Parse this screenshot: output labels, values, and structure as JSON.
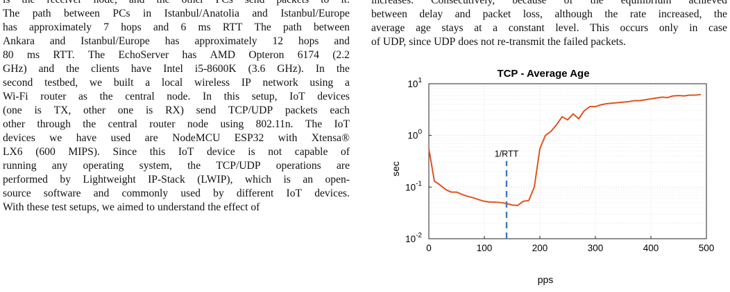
{
  "left_column": {
    "lines": [
      "is the receiver node, and the other PCs send packets to it.",
      "The path between PCs in Istanbul/Anatolia and Istanbul/Europe",
      "has approximately 7 hops and 6 ms RTT The path between",
      "Ankara and Istanbul/Europe has approximately 12 hops and",
      "80 ms RTT. The EchoServer has AMD Opteron 6174 (2.2",
      "GHz) and the clients have Intel i5-8600K (3.6 GHz). In the",
      "second testbed, we built a local wireless IP network using a",
      "Wi-Fi router as the central node. In this setup, IoT devices",
      "(one is TX, other one is RX) send TCP/UDP packets each",
      "other through the central router node using 802.11n. The IoT",
      "devices we have used are NodeMCU ESP32 with Xtensa®",
      "LX6 (600 MIPS). Since this IoT device is not capable of",
      "running any operating system, the TCP/UDP operations are",
      "performed by Lightweight IP-Stack (LWIP), which is an open-",
      "source software and commonly used by different IoT devices.",
      "With these test setups, we aimed to understand the effect of"
    ]
  },
  "right_column": {
    "lines": [
      "increases. Consecutively, because of the equilibrium achieved",
      "between delay and packet loss, although the rate increased, the",
      "average age stays at a constant level. This occurs only in case",
      "of UDP, since UDP does not re-transmit the failed packets."
    ]
  },
  "chart_data": {
    "type": "line",
    "title": "TCP - Average Age",
    "xlabel": "pps",
    "ylabel": "sec",
    "xlim": [
      0,
      500
    ],
    "ylim": [
      0.01,
      10
    ],
    "yscale": "log",
    "xticks": [
      0,
      100,
      200,
      300,
      400,
      500
    ],
    "xtick_labels": [
      "0",
      "100",
      "200",
      "300",
      "400",
      "500"
    ],
    "yticks": [
      0.01,
      0.1,
      1,
      10
    ],
    "ytick_labels": [
      {
        "base": "10",
        "exp": "-2"
      },
      {
        "base": "10",
        "exp": "-1"
      },
      {
        "base": "10",
        "exp": "0"
      },
      {
        "base": "10",
        "exp": "1"
      }
    ],
    "grid": true,
    "line_color": "#e0531d",
    "annotation": {
      "label": "1/RTT",
      "x": 140,
      "y_from": 0.01,
      "y_to": 0.32,
      "color": "#3a78c9"
    },
    "series": [
      {
        "x": [
          0,
          10,
          20,
          30,
          40,
          50,
          60,
          70,
          80,
          90,
          100,
          110,
          120,
          130,
          140,
          150,
          160,
          170,
          180,
          190,
          200,
          210,
          220,
          230,
          240,
          250,
          260,
          270,
          280,
          290,
          300,
          310,
          320,
          330,
          340,
          350,
          360,
          370,
          380,
          390,
          400,
          410,
          420,
          430,
          440,
          450,
          460,
          470,
          480,
          490
        ],
        "y": [
          0.55,
          0.13,
          0.11,
          0.09,
          0.08,
          0.08,
          0.072,
          0.066,
          0.062,
          0.057,
          0.053,
          0.051,
          0.051,
          0.05,
          0.048,
          0.045,
          0.044,
          0.053,
          0.055,
          0.1,
          0.55,
          1.0,
          1.2,
          1.6,
          2.3,
          2.0,
          2.6,
          2.1,
          3.0,
          3.6,
          3.6,
          3.9,
          4.1,
          4.2,
          4.3,
          4.4,
          4.5,
          4.7,
          4.7,
          4.9,
          5.1,
          5.3,
          5.5,
          5.4,
          5.8,
          5.9,
          5.8,
          6.0,
          6.0,
          6.2
        ]
      }
    ]
  }
}
